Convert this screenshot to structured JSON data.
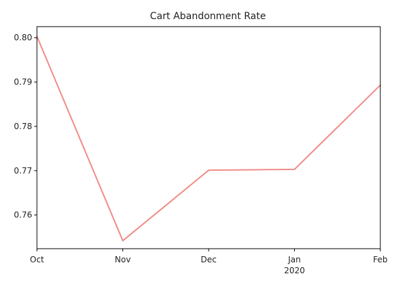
{
  "chart_data": {
    "type": "line",
    "title": "Cart Abandonment Rate",
    "xlabel": "",
    "ylabel": "",
    "x": [
      "2019-10",
      "2019-11",
      "2019-12",
      "2020-01",
      "2020-02"
    ],
    "x_tick_labels": [
      "Oct",
      "Nov",
      "Dec",
      "Jan",
      "Feb"
    ],
    "x_secondary_labels": [
      "",
      "",
      "",
      "2020",
      ""
    ],
    "series": [
      {
        "values": [
          0.8003,
          0.7542,
          0.7701,
          0.7703,
          0.7893
        ],
        "color": "#f08c87"
      }
    ],
    "ylim": [
      0.7524,
      0.8025
    ],
    "y_ticks": [
      0.76,
      0.77,
      0.78,
      0.79,
      0.8
    ],
    "y_tick_labels": [
      "0.76",
      "0.77",
      "0.78",
      "0.79",
      "0.80"
    ],
    "grid": false,
    "legend": "none"
  }
}
